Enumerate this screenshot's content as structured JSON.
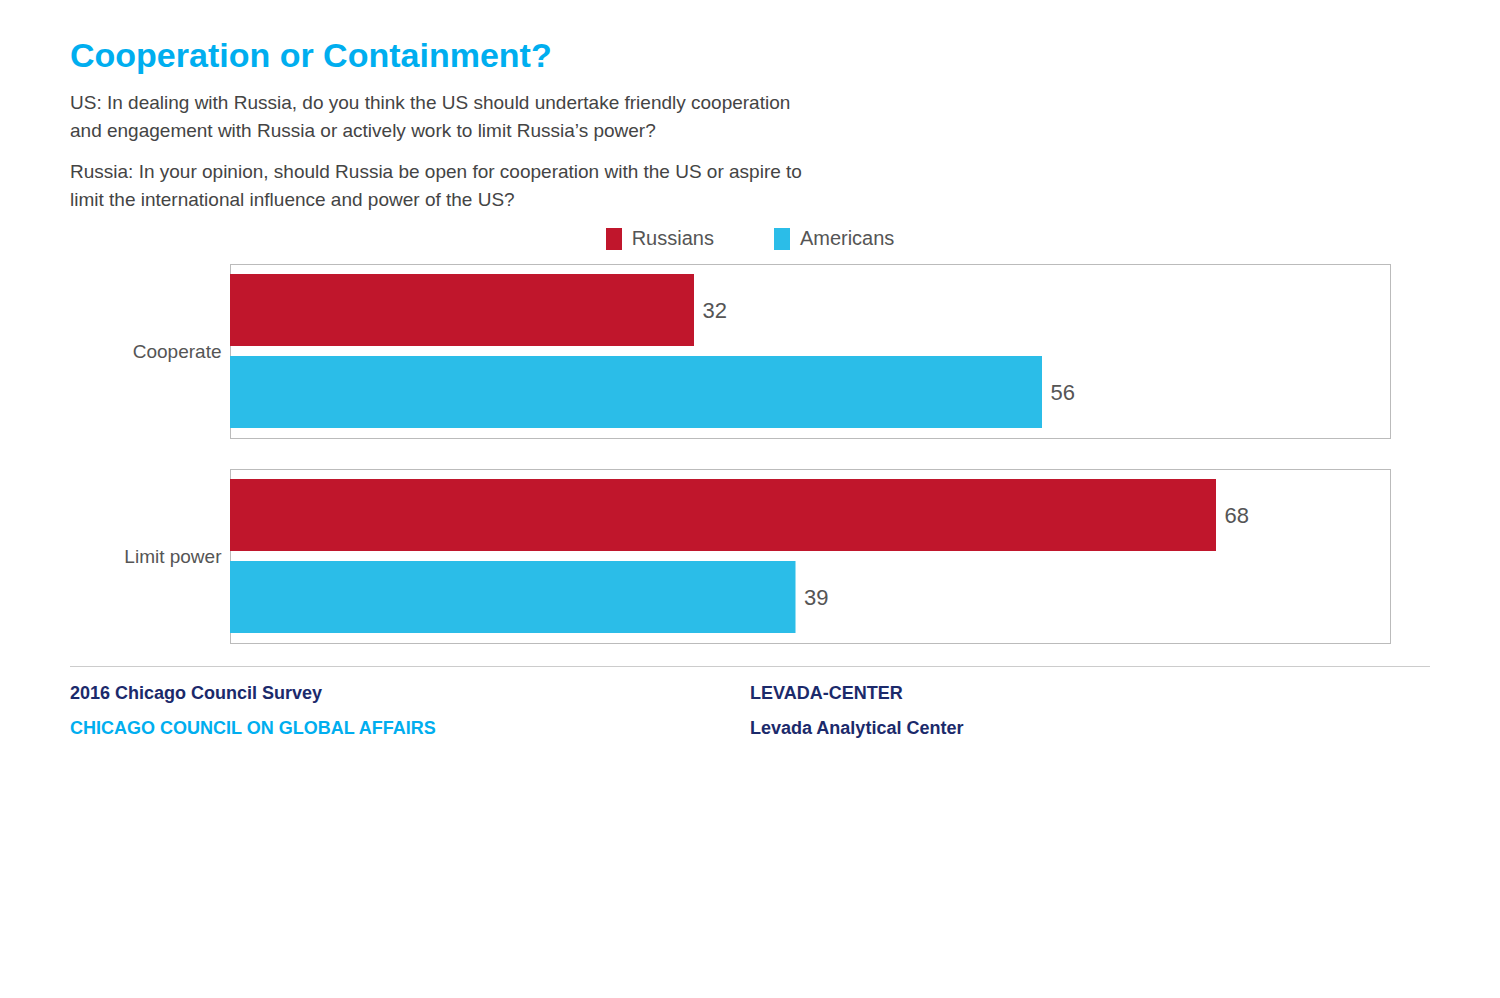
{
  "chart_data": {
    "type": "bar",
    "title": "Cooperation or Containment?",
    "subtitle": [
      "US: In dealing with Russia, do you think the US should undertake friendly cooperation\nand engagement with Russia or actively work to limit Russia’s power?",
      "Russia: In your opinion, should Russia be open for cooperation with the US or aspire to\nlimit the international influence and power of the US?"
    ],
    "orientation": "horizontal",
    "categories": [
      "Cooperate",
      "Limit power"
    ],
    "series": [
      {
        "name": "Russians",
        "color": "#C0162C",
        "values": [
          32,
          68
        ]
      },
      {
        "name": "Americans",
        "color": "#2BBDE8",
        "values": [
          56,
          39
        ]
      }
    ],
    "xlim": [
      0,
      80
    ],
    "data_labels": true,
    "tick_labels": "y",
    "legend": "top",
    "grid": false,
    "annotations": [
      "2016 Chicago Council Survey",
      "CHICAGO COUNCIL ON GLOBAL AFFAIRS",
      "LEVADA-CENTER",
      "Levada Analytical Center"
    ]
  }
}
